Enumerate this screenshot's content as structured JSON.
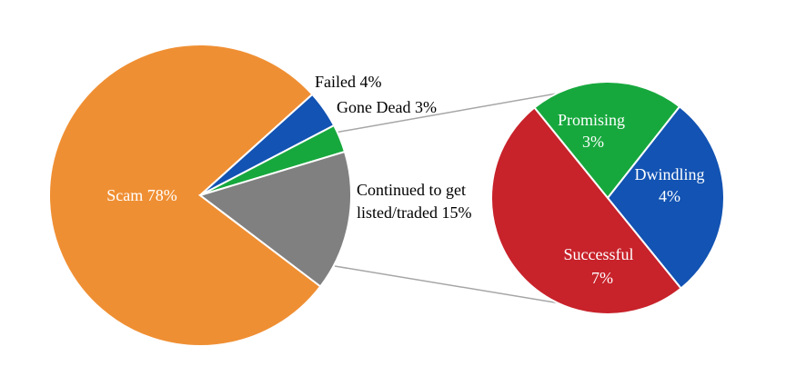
{
  "chart_data": {
    "type": "pie",
    "main_pie": {
      "slices": [
        {
          "label": "Scam 78%",
          "value": 78,
          "color": "#ef8f33"
        },
        {
          "label": "Failed 4%",
          "value": 4,
          "color": "#1253b3"
        },
        {
          "label": "Gone Dead 3%",
          "value": 3,
          "color": "#17a83d"
        },
        {
          "label_lines": [
            "Continued to get",
            "listed/traded 15%"
          ],
          "value": 15,
          "color": "#808080"
        }
      ]
    },
    "sub_pie": {
      "slices": [
        {
          "label_lines": [
            "Promising",
            "3%"
          ],
          "value": 3,
          "color": "#17a83d"
        },
        {
          "label_lines": [
            "Dwindling",
            "4%"
          ],
          "value": 4,
          "color": "#1253b3"
        },
        {
          "label_lines": [
            "Successful",
            "7%"
          ],
          "value": 7,
          "color": "#c8222a"
        }
      ]
    }
  }
}
